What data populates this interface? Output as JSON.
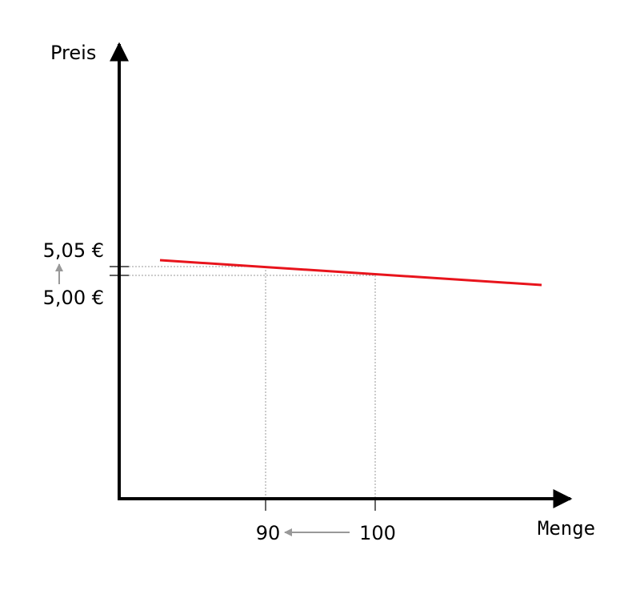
{
  "axes": {
    "y_label": "Preis",
    "x_label": "Menge"
  },
  "price_labels": [
    "5,05 €",
    "5,00 €"
  ],
  "quantity_labels": [
    "90",
    "100"
  ]
}
